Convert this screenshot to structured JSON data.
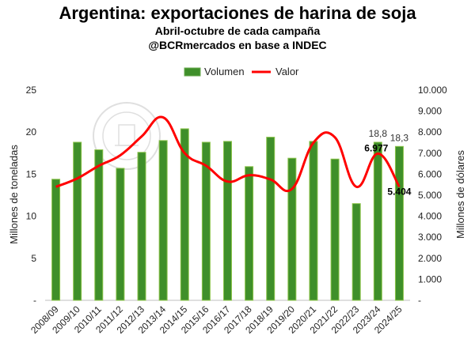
{
  "chart_data": {
    "type": "bar",
    "title": "Argentina: exportaciones de harina de soja",
    "subtitle1": "Abril-octubre de cada campaña",
    "subtitle2": "@BCRmercados en base a INDEC",
    "ylabel_left": "Millones de toneladas",
    "ylabel_right": "Millones de dólares",
    "legend": [
      "Volumen",
      "Valor"
    ],
    "legend_position": "top",
    "categories": [
      "2008/09",
      "2009/10",
      "2010/11",
      "2011/12",
      "2012/13",
      "2013/14",
      "2014/15",
      "2015/16",
      "2016/17",
      "2017/18",
      "2018/19",
      "2019/20",
      "2020/21",
      "2021/22",
      "2022/23",
      "2023/24",
      "2024/25"
    ],
    "series": [
      {
        "name": "Volumen",
        "type": "bar",
        "axis": "left",
        "color": "#3f8f2a",
        "values": [
          14.4,
          18.8,
          17.9,
          15.7,
          17.6,
          19.0,
          20.4,
          18.8,
          18.9,
          15.9,
          19.4,
          16.9,
          18.9,
          16.8,
          11.5,
          18.8,
          18.3
        ]
      },
      {
        "name": "Valor",
        "type": "line",
        "axis": "right",
        "color": "#ff0000",
        "values": [
          5400,
          5800,
          6400,
          6900,
          7800,
          8700,
          7000,
          6400,
          5650,
          5950,
          5750,
          5300,
          7500,
          7750,
          5400,
          6977,
          5404
        ]
      }
    ],
    "ylim_left": [
      0,
      25
    ],
    "yticks_left": [
      "-",
      "5",
      "10",
      "15",
      "20",
      "25"
    ],
    "ylim_right": [
      0,
      10000
    ],
    "yticks_right": [
      "-",
      "1.000",
      "2.000",
      "3.000",
      "4.000",
      "5.000",
      "6.000",
      "7.000",
      "8.000",
      "9.000",
      "10.000"
    ],
    "data_labels": {
      "vol_2023": "18,8",
      "vol_2024": "18,3",
      "val_2023": "6.977",
      "val_2024": "5.404"
    },
    "grid": false
  }
}
